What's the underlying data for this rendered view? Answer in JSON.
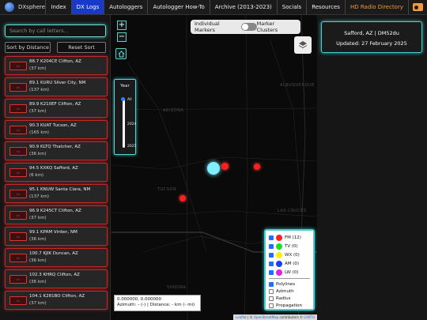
{
  "nav": {
    "brand": "DXsphere",
    "items": [
      {
        "label": "Index",
        "active": false
      },
      {
        "label": "DX Logs",
        "active": true
      },
      {
        "label": "Autologgers",
        "active": false
      },
      {
        "label": "Autologger How-To",
        "active": false
      },
      {
        "label": "Archive (2013-2023)",
        "active": false
      },
      {
        "label": "Socials",
        "active": false
      },
      {
        "label": "Resources",
        "active": false
      },
      {
        "label": "HD Radio Directory",
        "active": false
      }
    ],
    "icon": "radio-icon"
  },
  "sidebar": {
    "search_placeholder": "Search by call letters...",
    "sort_label": "Sort by Distance",
    "reset_label": "Reset Sort",
    "stations": [
      {
        "line1": "88.7 K204CE Clifton, AZ",
        "line2": "(37 km)"
      },
      {
        "line1": "89.1 KURU Silver City, NM",
        "line2": "(137 km)"
      },
      {
        "line1": "89.9 K210EF Clifton, AZ",
        "line2": "(37 km)"
      },
      {
        "line1": "90.3 KUAT Tucson, AZ",
        "line2": "(165 km)"
      },
      {
        "line1": "90.9 KLTQ Thatcher, AZ",
        "line2": "(36 km)"
      },
      {
        "line1": "94.5 KXKQ Safford, AZ",
        "line2": "(6 km)"
      },
      {
        "line1": "95.1 KNUW Santa Clara, NM",
        "line2": "(137 km)"
      },
      {
        "line1": "96.9 K245CT Clifton, AZ",
        "line2": "(37 km)"
      },
      {
        "line1": "99.1 KPAM Virden, NM",
        "line2": "(36 km)"
      },
      {
        "line1": "100.7 KJIK Duncan, AZ",
        "line2": "(36 km)"
      },
      {
        "line1": "102.3 KHRQ Clifton, AZ",
        "line2": "(36 km)"
      },
      {
        "line1": "104.1 K281BO Clifton, AZ",
        "line2": "(37 km)"
      }
    ]
  },
  "map": {
    "year_title": "Year",
    "year_ticks": [
      "All",
      "2024",
      "2025"
    ],
    "toggle_left": "Individual Markers",
    "toggle_right": "Marker Clusters",
    "place_labels": [
      "ARIZONA",
      "TUCSON",
      "ALBUQUERQUE",
      "LAS CRUCES",
      "SONORA"
    ],
    "legend": [
      {
        "label": "FM (12)",
        "color": "#ff1f1f",
        "checked": true
      },
      {
        "label": "TV (0)",
        "color": "#22dd22",
        "checked": true
      },
      {
        "label": "WX (0)",
        "color": "#ffee00",
        "checked": true
      },
      {
        "label": "AM (0)",
        "color": "#1a3cff",
        "checked": true
      },
      {
        "label": "LW (0)",
        "color": "#e022e0",
        "checked": true
      }
    ],
    "options": [
      {
        "label": "Polylines",
        "checked": true
      },
      {
        "label": "Azimuth",
        "checked": false
      },
      {
        "label": "Radius",
        "checked": false
      },
      {
        "label": "Propagation",
        "checked": false
      }
    ],
    "coords": "0.000000, 0.000000",
    "readout": "Azimuth: - (-) | Distance: - km (- mi)",
    "attribution": {
      "leaflet": "Leaflet",
      "osm": "OpenStreetMap",
      "contributors": "contributors ©",
      "carto": "CARTO"
    }
  },
  "info": {
    "title": "Safford, AZ | DM52du",
    "updated": "Updated: 27 February 2025"
  }
}
